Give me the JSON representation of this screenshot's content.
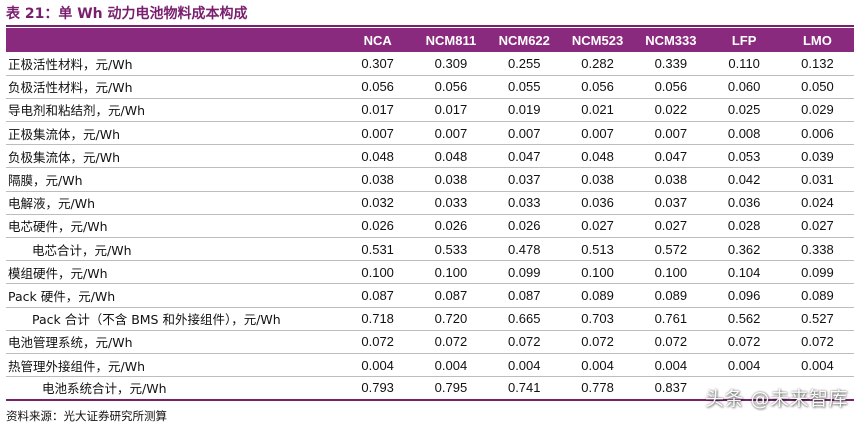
{
  "title": "表 21：单 Wh 动力电池物料成本构成",
  "columns": [
    "",
    "NCA",
    "NCM811",
    "NCM622",
    "NCM523",
    "NCM333",
    "LFP",
    "LMO"
  ],
  "rows": [
    {
      "label": "正极活性材料，元/Wh",
      "values": [
        "0.307",
        "0.309",
        "0.255",
        "0.282",
        "0.339",
        "0.110",
        "0.132"
      ]
    },
    {
      "label": "负极活性材料，元/Wh",
      "values": [
        "0.056",
        "0.056",
        "0.055",
        "0.056",
        "0.056",
        "0.060",
        "0.050"
      ]
    },
    {
      "label": "导电剂和粘结剂，元/Wh",
      "values": [
        "0.017",
        "0.017",
        "0.019",
        "0.021",
        "0.022",
        "0.025",
        "0.029"
      ]
    },
    {
      "label": "正极集流体，元/Wh",
      "values": [
        "0.007",
        "0.007",
        "0.007",
        "0.007",
        "0.007",
        "0.008",
        "0.006"
      ]
    },
    {
      "label": "负极集流体，元/Wh",
      "values": [
        "0.048",
        "0.048",
        "0.047",
        "0.048",
        "0.047",
        "0.053",
        "0.039"
      ]
    },
    {
      "label": "隔膜，元/Wh",
      "values": [
        "0.038",
        "0.038",
        "0.037",
        "0.038",
        "0.038",
        "0.042",
        "0.031"
      ]
    },
    {
      "label": "电解液，元/Wh",
      "values": [
        "0.032",
        "0.033",
        "0.033",
        "0.036",
        "0.037",
        "0.036",
        "0.024"
      ]
    },
    {
      "label": "电芯硬件，元/Wh",
      "values": [
        "0.026",
        "0.026",
        "0.026",
        "0.027",
        "0.027",
        "0.028",
        "0.027"
      ]
    },
    {
      "label": "电芯合计，元/Wh",
      "values": [
        "0.531",
        "0.533",
        "0.478",
        "0.513",
        "0.572",
        "0.362",
        "0.338"
      ]
    },
    {
      "label": "模组硬件，元/Wh",
      "values": [
        "0.100",
        "0.100",
        "0.099",
        "0.100",
        "0.100",
        "0.104",
        "0.099"
      ]
    },
    {
      "label": "Pack 硬件，元/Wh",
      "values": [
        "0.087",
        "0.087",
        "0.087",
        "0.089",
        "0.089",
        "0.096",
        "0.089"
      ]
    },
    {
      "label": "Pack 合计（不含 BMS 和外接组件），元/Wh",
      "values": [
        "0.718",
        "0.720",
        "0.665",
        "0.703",
        "0.761",
        "0.562",
        "0.527"
      ]
    },
    {
      "label": "电池管理系统，元/Wh",
      "values": [
        "0.072",
        "0.072",
        "0.072",
        "0.072",
        "0.072",
        "0.072",
        "0.072"
      ]
    },
    {
      "label": "热管理外接组件，元/Wh",
      "values": [
        "0.004",
        "0.004",
        "0.004",
        "0.004",
        "0.004",
        "0.004",
        "0.004"
      ]
    },
    {
      "label": "电池系统合计，元/Wh",
      "values": [
        "0.793",
        "0.795",
        "0.741",
        "0.778",
        "0.837",
        "",
        ""
      ]
    }
  ],
  "source": "资料来源：光大证券研究所测算",
  "watermark": "头条 @未来智库"
}
